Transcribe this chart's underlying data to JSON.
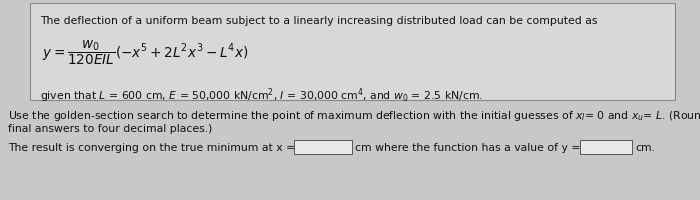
{
  "bg_color": "#c8c8c8",
  "top_box_facecolor": "#d8d8d8",
  "top_box_edgecolor": "#888888",
  "input_box_color": "#e8e8e8",
  "input_box_edge": "#555555",
  "text_color": "#111111",
  "font_size": 7.8,
  "line1": "The deflection of a uniform beam subject to a linearly increasing distributed load can be computed as",
  "line3": "given that L = 600 cm, E = 50,000 kN/cm",
  "line4_a": "Use the golden-section search to determine the point of maximum deflection with the initial guesses of x",
  "line4_b": "= 0 and x",
  "line4_c": "= L. (Round the",
  "line5": "final answers to four decimal places.)",
  "line6_a": "The result is converging on the true minimum at x =",
  "line6_b": "cm where the function has a value of y =",
  "line6_c": "cm."
}
